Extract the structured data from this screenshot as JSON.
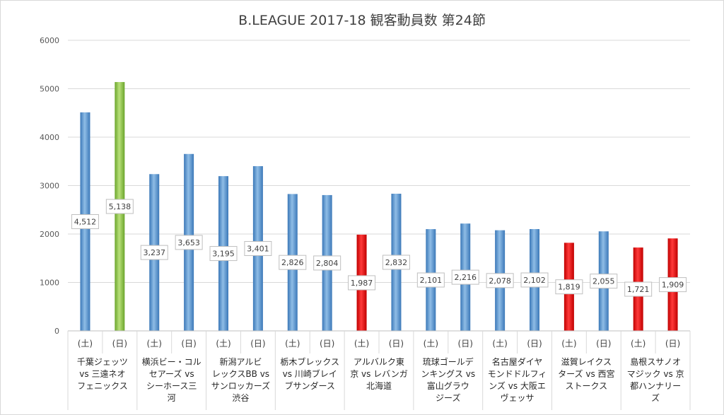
{
  "chart_data": {
    "type": "bar",
    "title": "B.LEAGUE 2017-18 観客動員数 第24節",
    "ylim": [
      0,
      6000
    ],
    "yticks": [
      0,
      1000,
      2000,
      3000,
      4000,
      5000,
      6000
    ],
    "grid": true,
    "legend": "none",
    "colors": {
      "blue": "#4f8fcf",
      "green": "#8cc63f",
      "red": "#e00000"
    },
    "groups": [
      {
        "label_lines": [
          "千葉ジェッツ",
          "vs 三遠ネオ",
          "フェニックス"
        ],
        "bars": [
          {
            "day": "(土)",
            "value": 4512,
            "label": "4,512",
            "color": "blue"
          },
          {
            "day": "(日)",
            "value": 5138,
            "label": "5,138",
            "color": "green"
          }
        ]
      },
      {
        "label_lines": [
          "横浜ビー・コル",
          "セアーズ vs",
          "シーホース三",
          "河"
        ],
        "bars": [
          {
            "day": "(土)",
            "value": 3237,
            "label": "3,237",
            "color": "blue"
          },
          {
            "day": "(日)",
            "value": 3653,
            "label": "3,653",
            "color": "blue"
          }
        ]
      },
      {
        "label_lines": [
          "新潟アルビ",
          "レックスBB vs",
          "サンロッカーズ",
          "渋谷"
        ],
        "bars": [
          {
            "day": "(土)",
            "value": 3195,
            "label": "3,195",
            "color": "blue"
          },
          {
            "day": "(日)",
            "value": 3401,
            "label": "3,401",
            "color": "blue"
          }
        ]
      },
      {
        "label_lines": [
          "栃木ブレックス",
          "vs 川崎ブレイ",
          "ブサンダース"
        ],
        "bars": [
          {
            "day": "(土)",
            "value": 2826,
            "label": "2,826",
            "color": "blue"
          },
          {
            "day": "(日)",
            "value": 2804,
            "label": "2,804",
            "color": "blue"
          }
        ]
      },
      {
        "label_lines": [
          "アルバルク東",
          "京 vs レバンガ",
          "北海道"
        ],
        "bars": [
          {
            "day": "(土)",
            "value": 1987,
            "label": "1,987",
            "color": "red"
          },
          {
            "day": "(日)",
            "value": 2832,
            "label": "2,832",
            "color": "blue"
          }
        ]
      },
      {
        "label_lines": [
          "琉球ゴールデ",
          "ンキングス vs",
          "富山グラウ",
          "ジーズ"
        ],
        "bars": [
          {
            "day": "(土)",
            "value": 2101,
            "label": "2,101",
            "color": "blue"
          },
          {
            "day": "(日)",
            "value": 2216,
            "label": "2,216",
            "color": "blue"
          }
        ]
      },
      {
        "label_lines": [
          "名古屋ダイヤ",
          "モンドドルフィ",
          "ンズ vs 大阪エ",
          "ヴェッサ"
        ],
        "bars": [
          {
            "day": "(土)",
            "value": 2078,
            "label": "2,078",
            "color": "blue"
          },
          {
            "day": "(日)",
            "value": 2102,
            "label": "2,102",
            "color": "blue"
          }
        ]
      },
      {
        "label_lines": [
          "滋賀レイクス",
          "ターズ vs 西宮",
          "ストークス"
        ],
        "bars": [
          {
            "day": "(土)",
            "value": 1819,
            "label": "1,819",
            "color": "red"
          },
          {
            "day": "(日)",
            "value": 2055,
            "label": "2,055",
            "color": "blue"
          }
        ]
      },
      {
        "label_lines": [
          "島根スサノオ",
          "マジック vs 京",
          "都ハンナリー",
          "ズ"
        ],
        "bars": [
          {
            "day": "(土)",
            "value": 1721,
            "label": "1,721",
            "color": "red"
          },
          {
            "day": "(日)",
            "value": 1909,
            "label": "1,909",
            "color": "red"
          }
        ]
      }
    ]
  }
}
